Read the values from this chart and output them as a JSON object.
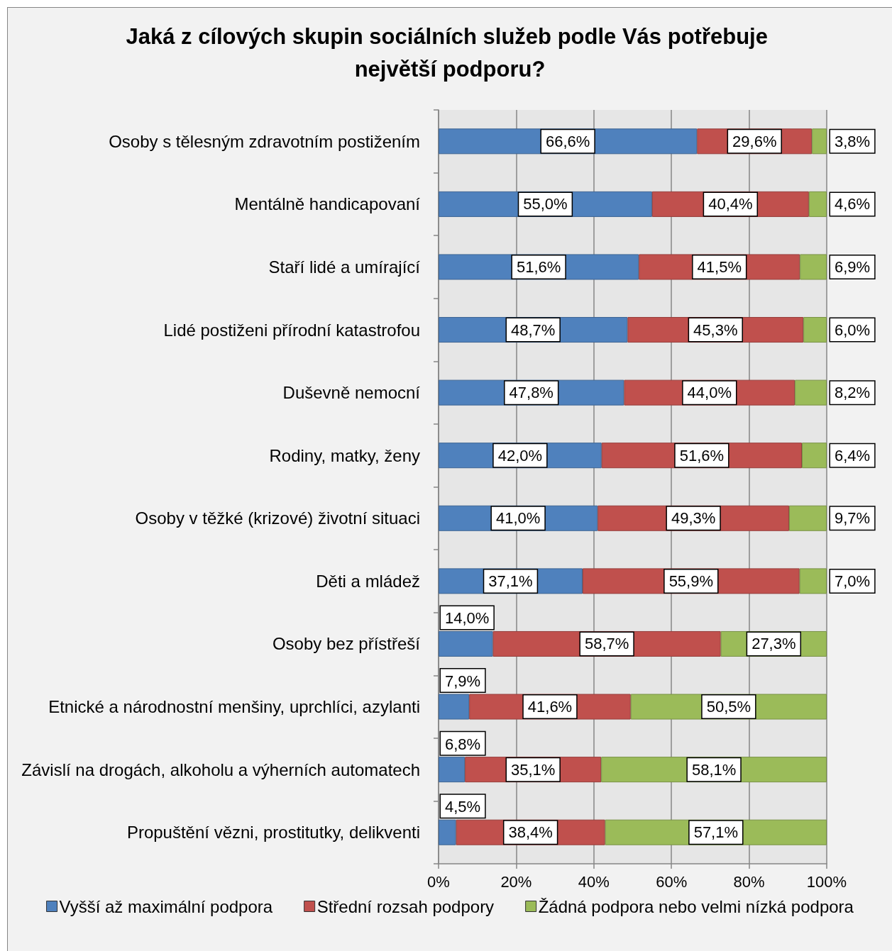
{
  "chart_data": {
    "type": "bar",
    "orientation": "horizontal",
    "stacked": true,
    "title": "Jaká z cílových skupin sociálních služeb podle Vás potřebuje největší podporu?",
    "categories": [
      "Osoby s tělesným zdravotním postižením",
      "Mentálně handicapovaní",
      "Staří lidé a umírající",
      "Lidé postiženi přírodní katastrofou",
      "Duševně nemocní",
      "Rodiny, matky, ženy",
      "Osoby v těžké (krizové) životní situaci",
      "Děti a mládež",
      "Osoby bez přístřeší",
      "Etnické a národnostní menšiny, uprchlíci, azylanti",
      "Závislí na drogách, alkoholu a výherních automatech",
      "Propuštění vězni, prostitutky, delikventi"
    ],
    "series": [
      {
        "name": "Vyšší až maximální podpora",
        "color": "#4f81bd",
        "values": [
          66.6,
          55.0,
          51.6,
          48.7,
          47.8,
          42.0,
          41.0,
          37.1,
          14.0,
          7.9,
          6.8,
          4.5
        ],
        "value_labels": [
          "66,6%",
          "55,0%",
          "51,6%",
          "48,7%",
          "47,8%",
          "42,0%",
          "41,0%",
          "37,1%",
          "14,0%",
          "7,9%",
          "6,8%",
          "4,5%"
        ]
      },
      {
        "name": "Střední rozsah podpory",
        "color": "#c0504d",
        "values": [
          29.6,
          40.4,
          41.5,
          45.3,
          44.0,
          51.6,
          49.3,
          55.9,
          58.7,
          41.6,
          35.1,
          38.4
        ],
        "value_labels": [
          "29,6%",
          "40,4%",
          "41,5%",
          "45,3%",
          "44,0%",
          "51,6%",
          "49,3%",
          "55,9%",
          "58,7%",
          "41,6%",
          "35,1%",
          "38,4%"
        ]
      },
      {
        "name": "Žádná podpora nebo velmi nízká podpora",
        "color": "#9bbb59",
        "values": [
          3.8,
          4.6,
          6.9,
          6.0,
          8.2,
          6.4,
          9.7,
          7.0,
          27.3,
          50.5,
          58.1,
          57.1
        ],
        "value_labels": [
          "3,8%",
          "4,6%",
          "6,9%",
          "6,0%",
          "8,2%",
          "6,4%",
          "9,7%",
          "7,0%",
          "27,3%",
          "50,5%",
          "58,1%",
          "57,1%"
        ]
      }
    ],
    "xlim": [
      0,
      100
    ],
    "xticks": [
      {
        "value": 0,
        "label": "0%"
      },
      {
        "value": 20,
        "label": "20%"
      },
      {
        "value": 40,
        "label": "40%"
      },
      {
        "value": 60,
        "label": "60%"
      },
      {
        "value": 80,
        "label": "80%"
      },
      {
        "value": 100,
        "label": "100%"
      }
    ],
    "grid": "x",
    "legend": "bottom"
  }
}
